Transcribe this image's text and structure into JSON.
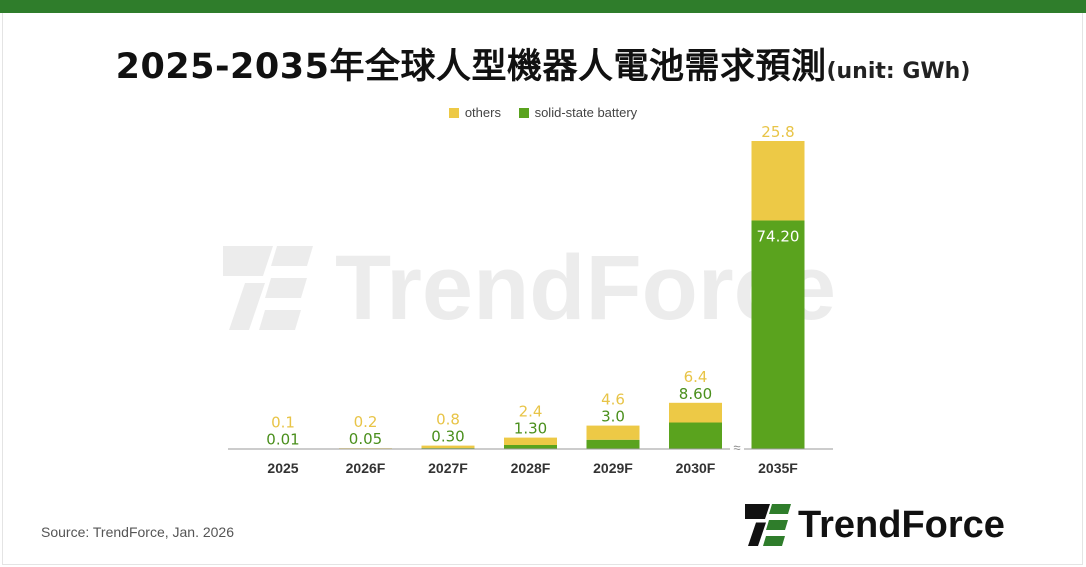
{
  "title": "2025-2035年全球人型機器人電池需求預測",
  "title_unit": "(unit: GWh)",
  "source": "Source: TrendForce, Jan. 2026",
  "brand": {
    "name": "TrendForce",
    "color": "#2f7d2b"
  },
  "watermark": "TrendForce",
  "axis_break_mark": "≈",
  "chart_data": {
    "type": "bar",
    "stacked": true,
    "categories": [
      "2025",
      "2026F",
      "2027F",
      "2028F",
      "2029F",
      "2030F",
      "2035F"
    ],
    "series": [
      {
        "name": "solid-state battery",
        "color": "#5aa31e",
        "values": [
          0.01,
          0.05,
          0.3,
          1.3,
          3.0,
          8.6,
          74.2
        ],
        "labels": [
          "0.01",
          "0.05",
          "0.30",
          "1.30",
          "3.0",
          "8.60",
          "74.20"
        ]
      },
      {
        "name": "others",
        "color": "#edc946",
        "values": [
          0.1,
          0.2,
          0.8,
          2.4,
          4.6,
          6.4,
          25.8
        ],
        "labels": [
          "0.1",
          "0.2",
          "0.8",
          "2.4",
          "4.6",
          "6.4",
          "25.8"
        ]
      }
    ],
    "legend_order": [
      "others",
      "solid-state battery"
    ],
    "legend_position": "top",
    "axis_break_after": "2030F",
    "grid": false,
    "y_axis_visible": false
  }
}
